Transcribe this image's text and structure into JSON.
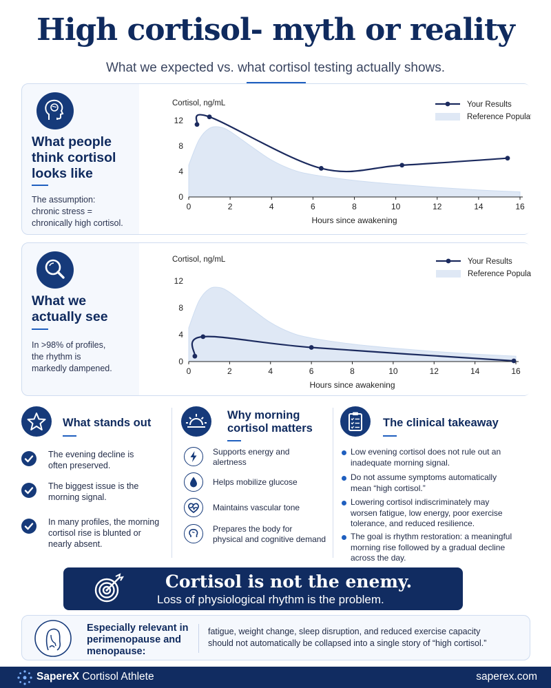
{
  "header": {
    "title": "High cortisol- myth or reality",
    "subtitle": "What we expected vs. what cortisol testing actually shows."
  },
  "panel1": {
    "heading_lines": [
      "What people",
      "think cortisol",
      "looks like"
    ],
    "text_lines": [
      "The assumption:",
      "chronic stress =",
      "chronically high cortisol."
    ]
  },
  "panel2": {
    "heading_lines": [
      "What we",
      "actually see"
    ],
    "text_lines": [
      "In >98% of profiles,",
      "the rhythm is",
      "markedly dampened."
    ]
  },
  "chart_data": [
    {
      "type": "line",
      "ylabel": "Cortisol, ng/mL",
      "xlabel": "Hours since awakening",
      "xlim": [
        0,
        16
      ],
      "ylim": [
        0,
        13
      ],
      "xticks": [
        0,
        2,
        4,
        6,
        8,
        10,
        12,
        14,
        16
      ],
      "yticks": [
        0,
        4,
        8,
        12
      ],
      "legend_position": "top-right",
      "series": [
        {
          "name": "Your Results",
          "kind": "line",
          "color": "#1b2a5e",
          "x": [
            0.4,
            1,
            6.4,
            10.3,
            15.4
          ],
          "y": [
            11.4,
            12.6,
            4.5,
            5.0,
            6.1
          ]
        },
        {
          "name": "Reference Population",
          "kind": "area",
          "color": "#dfe8f5",
          "x": [
            0,
            0.5,
            1,
            1.5,
            2,
            3,
            4,
            5,
            6,
            8,
            10,
            12,
            14,
            16
          ],
          "y": [
            5,
            9,
            10.8,
            11,
            10.3,
            8,
            5.8,
            4.3,
            3.5,
            2.6,
            2.0,
            1.5,
            1.1,
            0.8
          ]
        }
      ]
    },
    {
      "type": "line",
      "ylabel": "Cortisol, ng/mL",
      "xlabel": "Hours since awakening",
      "xlim": [
        0,
        16
      ],
      "ylim": [
        0,
        13
      ],
      "xticks": [
        0,
        2,
        4,
        6,
        8,
        10,
        12,
        14,
        16
      ],
      "yticks": [
        0,
        4,
        8,
        12
      ],
      "legend_position": "top-right",
      "series": [
        {
          "name": "Your Results",
          "kind": "line",
          "color": "#1b2a5e",
          "x": [
            0.3,
            0.7,
            6,
            15.9
          ],
          "y": [
            0.8,
            3.7,
            2.1,
            0.1
          ]
        },
        {
          "name": "Reference Population",
          "kind": "area",
          "color": "#dfe8f5",
          "x": [
            0,
            0.5,
            1,
            1.5,
            2,
            3,
            4,
            5,
            6,
            8,
            10,
            12,
            14,
            16
          ],
          "y": [
            5,
            9,
            10.8,
            11,
            10.3,
            8,
            5.8,
            4.3,
            3.5,
            2.6,
            2.0,
            1.5,
            1.1,
            0.8
          ]
        }
      ]
    }
  ],
  "stands_out": {
    "title": "What stands out",
    "items": [
      {
        "lines": [
          "The evening decline is",
          "often preserved."
        ]
      },
      {
        "lines": [
          "The biggest issue is the",
          "morning signal."
        ]
      },
      {
        "lines": [
          "In many profiles, the morning",
          "cortisol rise is blunted or",
          "nearly absent."
        ]
      }
    ]
  },
  "why_morning": {
    "title_lines": [
      "Why morning",
      "cortisol matters"
    ],
    "items": [
      {
        "icon": "lightning-icon",
        "lines": [
          "Supports energy and",
          "alertness"
        ]
      },
      {
        "icon": "droplet-icon",
        "lines": [
          "Helps mobilize glucose"
        ]
      },
      {
        "icon": "heart-pulse-icon",
        "lines": [
          "Maintains vascular tone"
        ]
      },
      {
        "icon": "brain-icon",
        "lines": [
          "Prepares the body for",
          "physical and cognitive demand"
        ]
      }
    ]
  },
  "takeaway": {
    "title": "The clinical takeaway",
    "items": [
      {
        "lines": [
          "Low evening cortisol does not rule out an",
          "inadequate morning signal."
        ]
      },
      {
        "lines": [
          "Do not assume symptoms automatically",
          "mean “high cortisol.”"
        ]
      },
      {
        "lines": [
          "Lowering cortisol indiscriminately may",
          "worsen fatigue, low energy, poor exercise",
          "tolerance, and reduced resilience."
        ]
      },
      {
        "lines": [
          "The goal is rhythm restoration: a meaningful",
          "morning rise followed by a gradual decline",
          "across the day."
        ]
      }
    ]
  },
  "banner": {
    "title": "Cortisol is not the enemy.",
    "subtitle": "Loss of physiological rhythm is the problem."
  },
  "menopause": {
    "title_lines": [
      "Especially relevant in",
      "perimenopause and",
      "menopause:"
    ],
    "text_lines": [
      "fatigue, weight change, sleep disruption, and reduced exercise capacity",
      "should not automatically be collapsed into a single story of “high cortisol.”"
    ]
  },
  "footer": {
    "brand_bold": "SapereX",
    "brand_rest": "Cortisol Athlete",
    "site": "saperex.com"
  },
  "colors": {
    "navy": "#112c61",
    "accent": "#1f5fbf",
    "reference_fill": "#dfe8f5"
  }
}
